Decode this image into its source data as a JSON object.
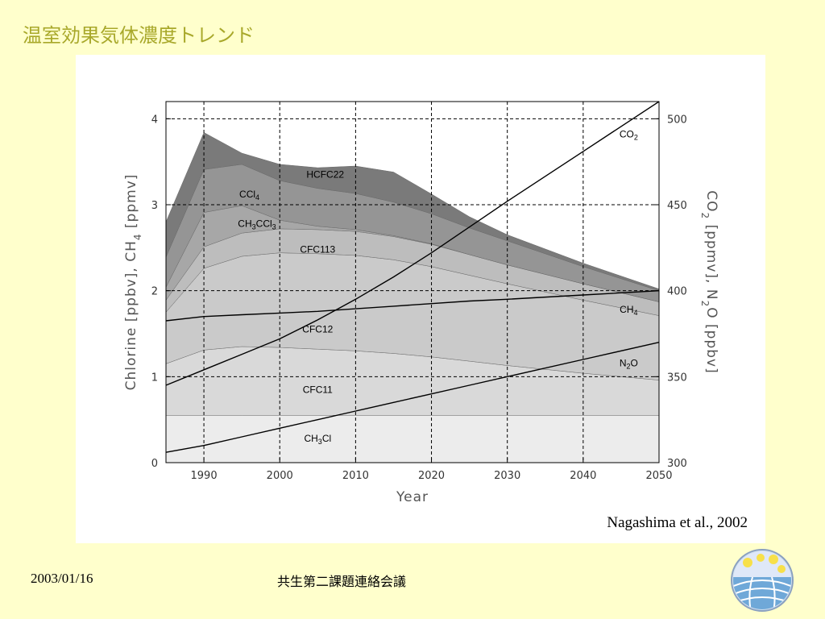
{
  "slide": {
    "title": "温室効果気体濃度トレンド",
    "citation": "Nagashima et al., 2002",
    "date": "2003/01/16",
    "meeting": "共生第二課題連絡会議"
  },
  "chart_data": {
    "type": "area",
    "xlabel": "Year",
    "ylabel": "Chlorine [ppbv], CH4 [ppmv]",
    "ylabel_parts": [
      "Chlorine [ppbv], CH",
      "4",
      " [ppmv]"
    ],
    "y2label": "CO2 [ppmv], N2O [ppbv]",
    "y2label_parts": [
      "CO",
      "2",
      " [ppmv], N",
      "2",
      "O [ppbv]"
    ],
    "xlim": [
      1985,
      2050
    ],
    "ylim": [
      0,
      4.2
    ],
    "y2lim": [
      300,
      510
    ],
    "xticks": [
      1990,
      2000,
      2010,
      2020,
      2030,
      2040,
      2050
    ],
    "yticks": [
      0,
      1,
      2,
      3,
      4
    ],
    "y2ticks": [
      300,
      350,
      400,
      450,
      500
    ],
    "grid": true,
    "x": [
      1985,
      1990,
      1995,
      2000,
      2005,
      2010,
      2015,
      2020,
      2025,
      2030,
      2040,
      2050
    ],
    "stacked_chlorine_series": [
      {
        "name": "CH3Cl",
        "label_parts": [
          [
            "CH",
            "n"
          ],
          [
            "3",
            "s"
          ],
          [
            "Cl",
            "n"
          ]
        ],
        "label_x": 2005,
        "label_y": 0.28,
        "color": "#ececec",
        "values": [
          0.55,
          0.55,
          0.55,
          0.55,
          0.55,
          0.55,
          0.55,
          0.55,
          0.55,
          0.55,
          0.55,
          0.55
        ]
      },
      {
        "name": "CFC11",
        "label_parts": [
          [
            "CFC11",
            "n"
          ]
        ],
        "label_x": 2005,
        "label_y": 0.85,
        "color": "#d9d9d9",
        "values": [
          0.6,
          0.76,
          0.8,
          0.79,
          0.77,
          0.75,
          0.72,
          0.68,
          0.63,
          0.58,
          0.49,
          0.41
        ]
      },
      {
        "name": "CFC12",
        "label_parts": [
          [
            "CFC12",
            "n"
          ]
        ],
        "label_x": 2005,
        "label_y": 1.55,
        "color": "#cacaca",
        "values": [
          0.6,
          0.95,
          1.05,
          1.1,
          1.11,
          1.11,
          1.09,
          1.05,
          1.0,
          0.95,
          0.85,
          0.75
        ]
      },
      {
        "name": "CFC113",
        "label_parts": [
          [
            "CFC113",
            "n"
          ]
        ],
        "label_x": 2005,
        "label_y": 2.48,
        "color": "#bdbdbd",
        "values": [
          0.14,
          0.25,
          0.27,
          0.28,
          0.28,
          0.28,
          0.27,
          0.26,
          0.24,
          0.22,
          0.19,
          0.16
        ]
      },
      {
        "name": "CH3CCl3",
        "label_parts": [
          [
            "CH",
            "n"
          ],
          [
            "3",
            "s"
          ],
          [
            "CCl",
            "n"
          ],
          [
            "3",
            "s"
          ]
        ],
        "label_x": 1997,
        "label_y": 2.78,
        "color": "#a7a7a7",
        "values": [
          0.15,
          0.4,
          0.32,
          0.1,
          0.04,
          0.02,
          0.01,
          0.005,
          0.0,
          0.0,
          0.0,
          0.0
        ]
      },
      {
        "name": "CCl4",
        "label_parts": [
          [
            "CCl",
            "n"
          ],
          [
            "4",
            "s"
          ]
        ],
        "label_x": 1996,
        "label_y": 3.12,
        "color": "#959595",
        "values": [
          0.35,
          0.5,
          0.48,
          0.46,
          0.44,
          0.42,
          0.39,
          0.35,
          0.31,
          0.28,
          0.2,
          0.13
        ]
      },
      {
        "name": "HCFC22",
        "label_parts": [
          [
            "HCFC22",
            "n"
          ]
        ],
        "label_x": 2006,
        "label_y": 3.35,
        "color": "#7a7a7a",
        "values": [
          0.41,
          0.43,
          0.13,
          0.19,
          0.24,
          0.32,
          0.35,
          0.23,
          0.13,
          0.07,
          0.04,
          0.02
        ]
      }
    ],
    "line_series": [
      {
        "name": "CO2",
        "label_parts": [
          [
            "CO",
            "n"
          ],
          [
            "2",
            "s"
          ]
        ],
        "label_x": 2046,
        "label_y2": 491,
        "axis": "right",
        "values": [
          345,
          354,
          363,
          372,
          383,
          395,
          408,
          422,
          437,
          452,
          481,
          510
        ]
      },
      {
        "name": "CH4",
        "label_parts": [
          [
            "CH",
            "n"
          ],
          [
            "4",
            "s"
          ]
        ],
        "label_x": 2046,
        "label_y": 1.78,
        "axis": "left",
        "values": [
          1.65,
          1.7,
          1.72,
          1.74,
          1.76,
          1.79,
          1.82,
          1.85,
          1.88,
          1.9,
          1.95,
          2.0
        ]
      },
      {
        "name": "N2O",
        "label_parts": [
          [
            "N",
            "n"
          ],
          [
            "2",
            "s"
          ],
          [
            "O",
            "n"
          ]
        ],
        "label_x": 2046,
        "label_y2": 358,
        "axis": "right",
        "values": [
          306,
          310,
          315,
          320,
          325,
          330,
          335,
          340,
          345,
          350,
          360,
          370
        ]
      }
    ]
  }
}
